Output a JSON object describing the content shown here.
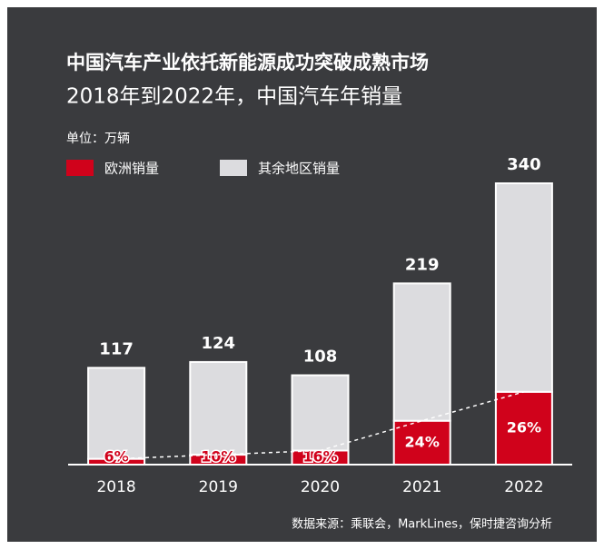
{
  "chart_data": {
    "type": "stacked_bar",
    "title": "中国汽车产业依托新能源成功突破成熟市场",
    "subtitle": "2018年到2022年，中国汽车年销量",
    "unit_label": "单位：万辆",
    "source": "数据来源：乘联会，MarkLines，保时捷咨询分析",
    "categories": [
      "2018",
      "2019",
      "2020",
      "2021",
      "2022"
    ],
    "series": [
      {
        "name": "欧洲销量",
        "color": "#d0021b",
        "values": [
          7,
          12,
          17,
          53,
          88
        ]
      },
      {
        "name": "其余地区销量",
        "color": "#dcdcdf",
        "values": [
          110,
          112,
          91,
          166,
          252
        ]
      }
    ],
    "totals": [
      117,
      124,
      108,
      219,
      340
    ],
    "europe_share": {
      "values": [
        6,
        10,
        16,
        24,
        26
      ],
      "value_labels": [
        "6%",
        "10%",
        "16%",
        "24%",
        "26%"
      ]
    },
    "ylim": [
      0,
      340
    ]
  }
}
